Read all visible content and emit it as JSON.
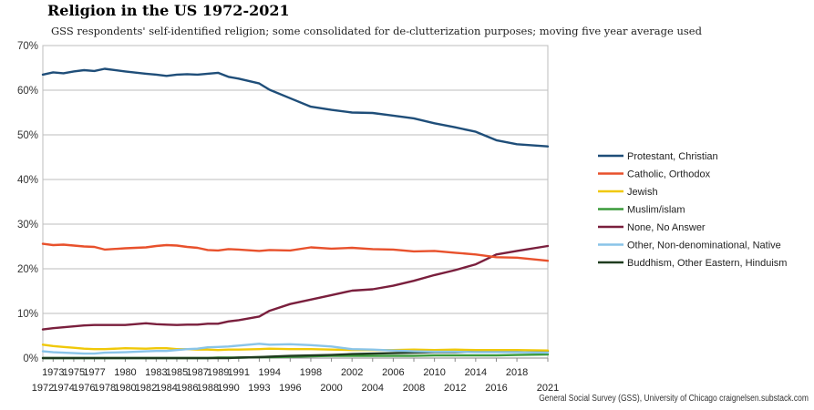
{
  "chart_data": {
    "type": "line",
    "title": "Religion in the US 1972-2021",
    "subtitle": "GSS respondents' self-identified religion; some consolidated for de-clutterization purposes; moving five year average used",
    "source": "General Social Survey (GSS), University of Chicago  craignelsen.substack.com",
    "ylim": [
      0,
      70
    ],
    "yticks": [
      "0%",
      "10%",
      "20%",
      "30%",
      "40%",
      "50%",
      "60%",
      "70%"
    ],
    "x_labels_lower": [
      "1972",
      "1974",
      "1976",
      "1978",
      "1980",
      "1982",
      "1984",
      "1986",
      "1988",
      "1990",
      "1993",
      "1996",
      "2000",
      "2004",
      "2008",
      "2012",
      "2016",
      "2021"
    ],
    "x_labels_upper": [
      "1973",
      "1975",
      "1977",
      "1980",
      "1983",
      "1985",
      "1987",
      "1989",
      "1991",
      "1994",
      "1998",
      "2002",
      "2006",
      "2010",
      "2014",
      "2018"
    ],
    "x": [
      "1972",
      "1973",
      "1974",
      "1975",
      "1976",
      "1977",
      "1978",
      "1980",
      "1982",
      "1983",
      "1984",
      "1985",
      "1986",
      "1987",
      "1988",
      "1989",
      "1990",
      "1991",
      "1993",
      "1994",
      "1996",
      "1998",
      "2000",
      "2002",
      "2004",
      "2006",
      "2008",
      "2010",
      "2012",
      "2014",
      "2016",
      "2018",
      "2021"
    ],
    "legend_position": "right",
    "series": [
      {
        "name": "Protestant, Christian",
        "color": "#1f4e79",
        "values": [
          63.5,
          64.0,
          63.8,
          64.2,
          64.5,
          64.3,
          64.8,
          64.2,
          63.7,
          63.5,
          63.2,
          63.5,
          63.6,
          63.5,
          63.7,
          63.9,
          63.0,
          62.6,
          61.5,
          60.1,
          58.2,
          56.3,
          55.6,
          55.0,
          54.9,
          54.3,
          53.7,
          52.6,
          51.7,
          50.7,
          48.8,
          47.9,
          47.4
        ]
      },
      {
        "name": "Catholic, Orthodox",
        "color": "#e8512c",
        "values": [
          25.6,
          25.3,
          25.4,
          25.2,
          25.0,
          24.9,
          24.3,
          24.6,
          24.8,
          25.1,
          25.3,
          25.2,
          24.9,
          24.7,
          24.2,
          24.1,
          24.4,
          24.3,
          24.0,
          24.2,
          24.1,
          24.8,
          24.5,
          24.7,
          24.4,
          24.3,
          23.9,
          24.0,
          23.6,
          23.2,
          22.6,
          22.5,
          21.8
        ]
      },
      {
        "name": "Jewish",
        "color": "#f0c808",
        "values": [
          3.0,
          2.7,
          2.5,
          2.3,
          2.1,
          2.0,
          2.0,
          2.2,
          2.1,
          2.2,
          2.2,
          2.0,
          2.0,
          1.9,
          1.9,
          1.8,
          1.9,
          1.9,
          2.0,
          2.1,
          2.0,
          2.0,
          1.9,
          1.8,
          1.8,
          1.8,
          1.9,
          1.8,
          1.9,
          1.8,
          1.8,
          1.8,
          1.7
        ]
      },
      {
        "name": "Muslim/islam",
        "color": "#3a9a3a",
        "values": [
          0.0,
          0.0,
          0.0,
          0.0,
          0.0,
          0.0,
          0.0,
          0.0,
          0.0,
          0.0,
          0.0,
          0.0,
          0.0,
          0.0,
          0.0,
          0.1,
          0.1,
          0.1,
          0.2,
          0.2,
          0.3,
          0.4,
          0.5,
          0.5,
          0.5,
          0.5,
          0.5,
          0.6,
          0.6,
          0.6,
          0.6,
          0.7,
          0.8
        ]
      },
      {
        "name": "None, No Answer",
        "color": "#7a1f3d",
        "values": [
          6.4,
          6.7,
          6.9,
          7.1,
          7.3,
          7.4,
          7.4,
          7.4,
          7.8,
          7.6,
          7.5,
          7.4,
          7.5,
          7.5,
          7.7,
          7.7,
          8.2,
          8.5,
          9.3,
          10.6,
          12.1,
          13.1,
          14.1,
          15.1,
          15.4,
          16.2,
          17.3,
          18.6,
          19.7,
          21.0,
          23.2,
          24.0,
          25.1
        ]
      },
      {
        "name": "Other, Non-denominational, Native",
        "color": "#89c4e8",
        "values": [
          1.5,
          1.3,
          1.2,
          1.1,
          1.0,
          1.0,
          1.2,
          1.3,
          1.5,
          1.6,
          1.6,
          1.8,
          2.0,
          2.1,
          2.4,
          2.5,
          2.6,
          2.8,
          3.2,
          3.0,
          3.1,
          2.9,
          2.6,
          2.0,
          1.9,
          1.7,
          1.5,
          1.4,
          1.4,
          1.3,
          1.3,
          1.3,
          1.2
        ]
      },
      {
        "name": "Buddhism, Other Eastern, Hinduism",
        "color": "#1f3b1f",
        "values": [
          0.0,
          0.0,
          0.0,
          0.0,
          0.0,
          0.0,
          0.0,
          0.0,
          0.0,
          0.0,
          0.0,
          0.0,
          0.0,
          0.0,
          0.0,
          0.0,
          0.0,
          0.1,
          0.2,
          0.3,
          0.5,
          0.6,
          0.7,
          0.9,
          1.0,
          1.1,
          1.2,
          1.3,
          1.3,
          1.4,
          1.5,
          1.6,
          1.6
        ]
      }
    ]
  }
}
